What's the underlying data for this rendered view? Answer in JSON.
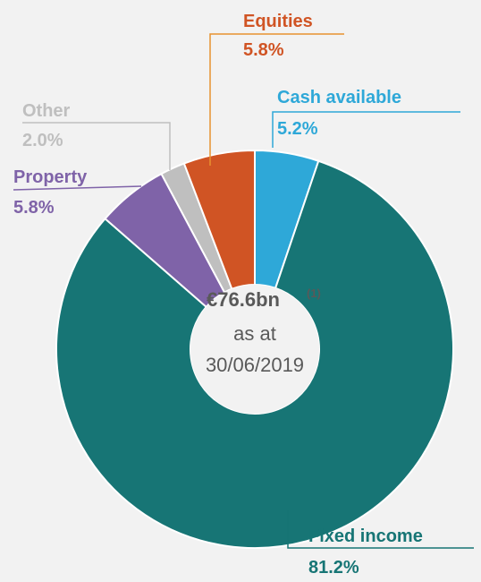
{
  "chart_data": {
    "type": "donut",
    "categories": [
      "Cash available",
      "Fixed income",
      "Property",
      "Other",
      "Equities"
    ],
    "values": [
      5.2,
      81.2,
      5.8,
      2.0,
      5.8
    ],
    "value_labels": [
      "5.2%",
      "81.2%",
      "5.8%",
      "2.0%",
      "5.8%"
    ],
    "colors": [
      "#2ea8d8",
      "#177575",
      "#7f63a8",
      "#bfbfbf",
      "#d05424"
    ],
    "center": {
      "amount": "€76.6bn",
      "note": "(1)",
      "line2": "as at",
      "line3": "30/06/2019"
    }
  }
}
